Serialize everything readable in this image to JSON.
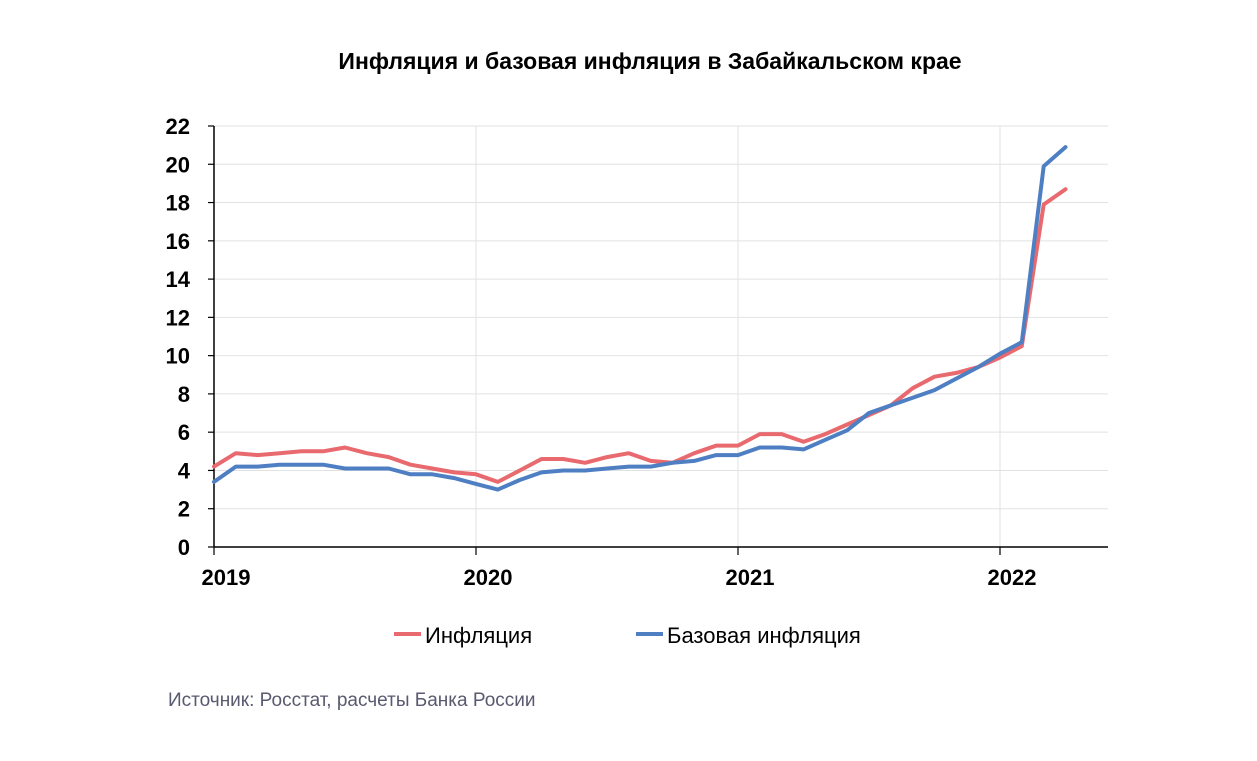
{
  "chart_data": {
    "type": "line",
    "title": "Инфляция и базовая инфляция в Забайкальском крае",
    "xlabel": "",
    "ylabel": "",
    "ylim": [
      0,
      22
    ],
    "yticks": [
      "0",
      "2",
      "4",
      "6",
      "8",
      "10",
      "12",
      "14",
      "16",
      "18",
      "20",
      "22"
    ],
    "xticks": [
      "2019",
      "2020",
      "2021",
      "2022"
    ],
    "grid": true,
    "legend_position": "bottom",
    "x": [
      "2019-01",
      "2019-02",
      "2019-03",
      "2019-04",
      "2019-05",
      "2019-06",
      "2019-07",
      "2019-08",
      "2019-09",
      "2019-10",
      "2019-11",
      "2019-12",
      "2020-01",
      "2020-02",
      "2020-03",
      "2020-04",
      "2020-05",
      "2020-06",
      "2020-07",
      "2020-08",
      "2020-09",
      "2020-10",
      "2020-11",
      "2020-12",
      "2021-01",
      "2021-02",
      "2021-03",
      "2021-04",
      "2021-05",
      "2021-06",
      "2021-07",
      "2021-08",
      "2021-09",
      "2021-10",
      "2021-11",
      "2021-12",
      "2022-01",
      "2022-02",
      "2022-03",
      "2022-04"
    ],
    "series": [
      {
        "name": "Инфляция",
        "color": "#e8696e",
        "values": [
          4.2,
          4.9,
          4.8,
          4.9,
          5.0,
          5.0,
          5.2,
          4.9,
          4.7,
          4.3,
          4.1,
          3.9,
          3.8,
          3.4,
          4.0,
          4.6,
          4.6,
          4.4,
          4.7,
          4.9,
          4.5,
          4.4,
          4.9,
          5.3,
          5.3,
          5.9,
          5.9,
          5.5,
          5.9,
          6.4,
          6.9,
          7.4,
          8.3,
          8.9,
          9.1,
          9.4,
          9.9,
          10.5,
          17.9,
          18.7
        ]
      },
      {
        "name": "Базовая инфляция",
        "color": "#4f7fc3",
        "values": [
          3.4,
          4.2,
          4.2,
          4.3,
          4.3,
          4.3,
          4.1,
          4.1,
          4.1,
          3.8,
          3.8,
          3.6,
          3.3,
          3.0,
          3.5,
          3.9,
          4.0,
          4.0,
          4.1,
          4.2,
          4.2,
          4.4,
          4.5,
          4.8,
          4.8,
          5.2,
          5.2,
          5.1,
          5.6,
          6.1,
          7.0,
          7.4,
          7.8,
          8.2,
          8.8,
          9.4,
          10.1,
          10.7,
          19.9,
          20.9
        ]
      }
    ]
  },
  "source": "Источник: Росстат, расчеты Банка России"
}
